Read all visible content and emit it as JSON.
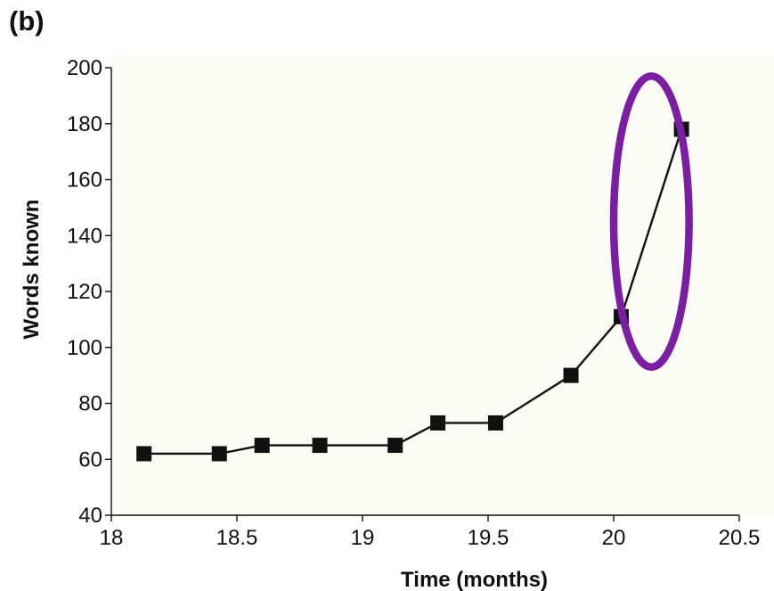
{
  "panel_label": "(b)",
  "chart_data": {
    "type": "line",
    "xlabel": "Time (months)",
    "ylabel": "Words known",
    "xlim": [
      18,
      20.5
    ],
    "ylim": [
      40,
      200
    ],
    "xticks": [
      18,
      18.5,
      19,
      19.5,
      20,
      20.5
    ],
    "xtick_labels": [
      "18",
      "18.5",
      "19",
      "19.5",
      "20",
      "20.5"
    ],
    "yticks": [
      40,
      60,
      80,
      100,
      120,
      140,
      160,
      180,
      200
    ],
    "ytick_labels": [
      "40",
      "60",
      "80",
      "100",
      "120",
      "140",
      "160",
      "180",
      "200"
    ],
    "grid": false,
    "series": [
      {
        "x": [
          18.13,
          18.43,
          18.6,
          18.83,
          19.13,
          19.3,
          19.53,
          19.83,
          20.03,
          20.27
        ],
        "y": [
          62,
          62,
          65,
          65,
          65,
          73,
          73,
          90,
          111,
          178
        ],
        "marker": "square",
        "color": "#111111"
      }
    ],
    "annotations": [
      {
        "type": "ellipse",
        "color": "#7b1fa2",
        "center": {
          "x": 20.15,
          "y": 145
        },
        "semi_axes": {
          "x": 0.15,
          "y": 52
        }
      }
    ],
    "colors": {
      "plot_background": "#fbfbf5",
      "ink": "#111111",
      "highlight": "#7b1fa2"
    }
  }
}
